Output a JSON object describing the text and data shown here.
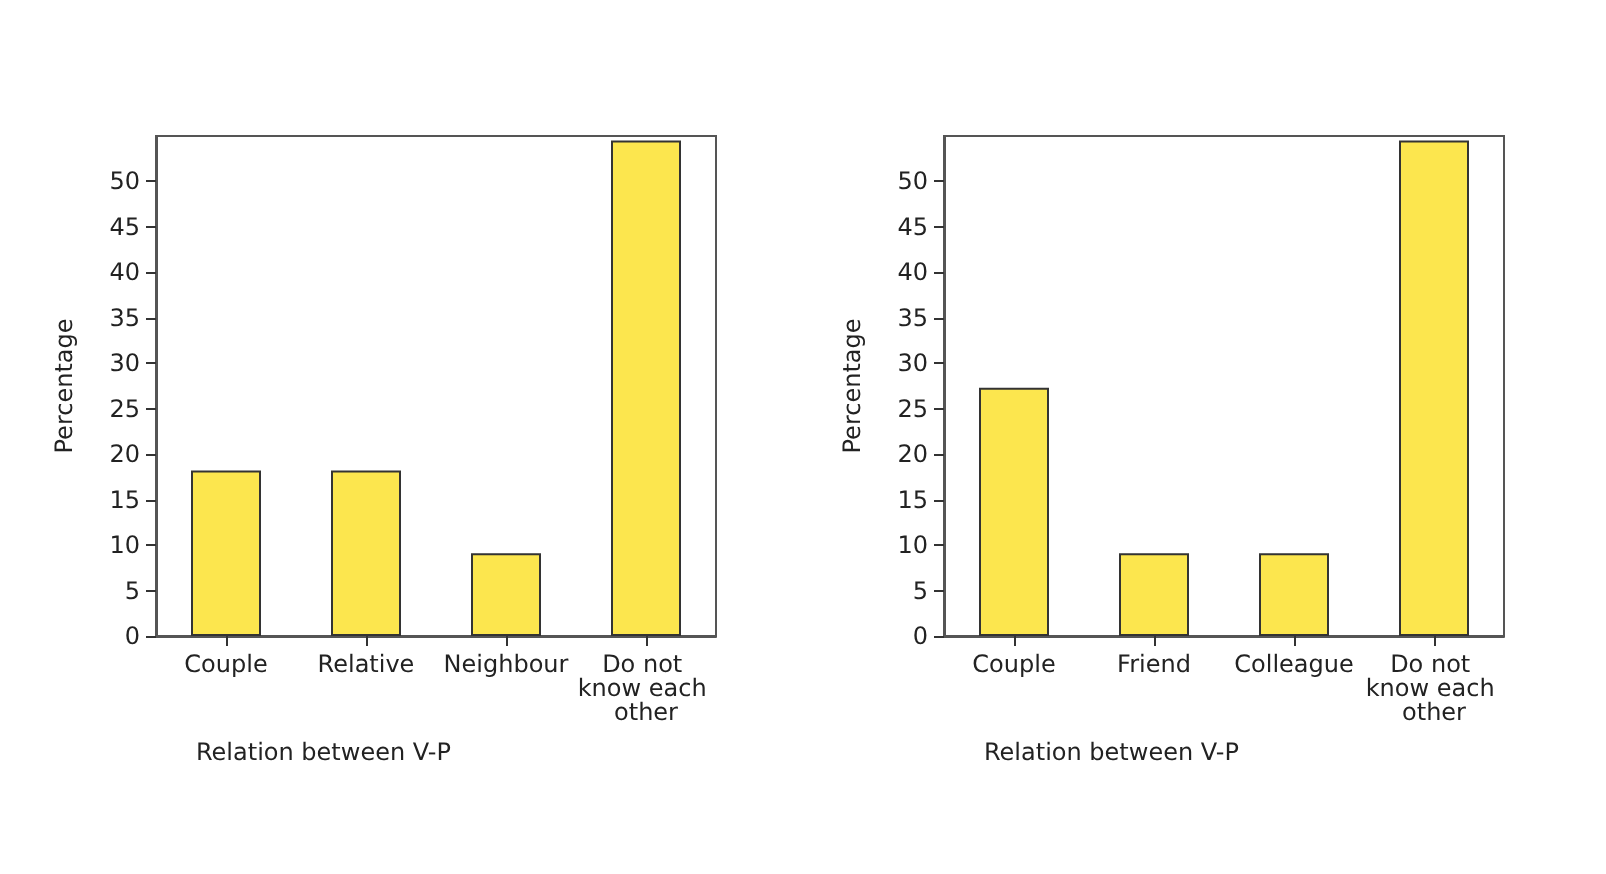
{
  "chart_data": [
    {
      "type": "bar",
      "xlabel": "Relation between V-P",
      "ylabel": "Percentage",
      "categories": [
        "Couple",
        "Relative",
        "Neighbour",
        "Do not know each other"
      ],
      "values": [
        18.2,
        18.2,
        9.1,
        54.5
      ],
      "color": "#fce64e",
      "ylim": [
        0,
        55
      ],
      "yticks": [
        0,
        5,
        10,
        15,
        20,
        25,
        30,
        35,
        40,
        45,
        50
      ]
    },
    {
      "type": "bar",
      "xlabel": "Relation between V-P",
      "ylabel": "Percentage",
      "categories": [
        "Couple",
        "Friend",
        "Colleague",
        "Do not know each other"
      ],
      "values": [
        27.3,
        9.1,
        9.1,
        54.5
      ],
      "color": "#fce64e",
      "ylim": [
        0,
        55
      ],
      "yticks": [
        0,
        5,
        10,
        15,
        20,
        25,
        30,
        35,
        40,
        45,
        50
      ]
    }
  ]
}
